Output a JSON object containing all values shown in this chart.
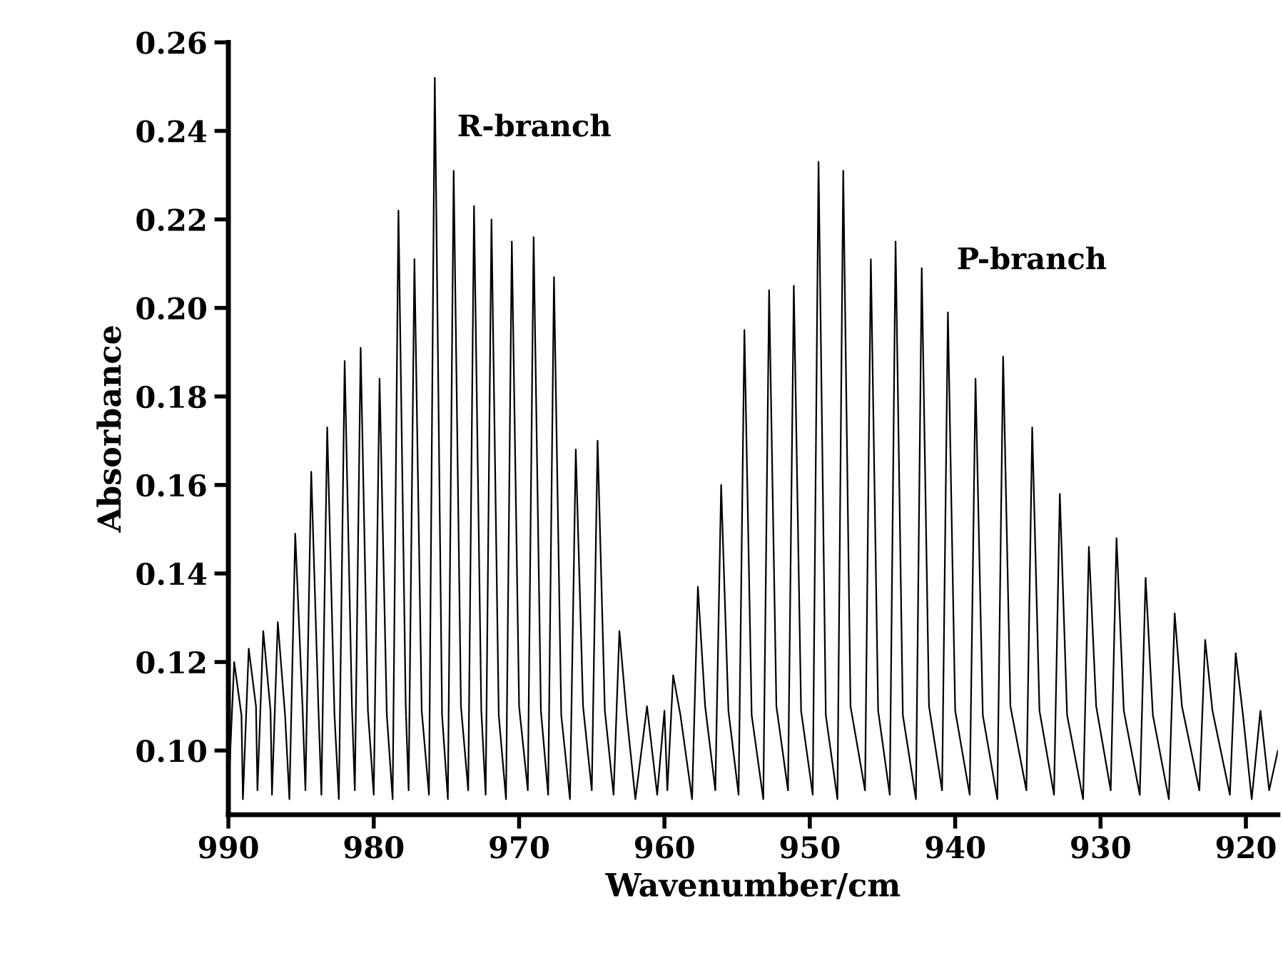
{
  "chart_data": {
    "type": "line",
    "xlabel": "Wavenumber/cm",
    "ylabel": "Absorbance",
    "xlim": [
      990,
      917.8
    ],
    "xticks": [
      990,
      980,
      970,
      960,
      950,
      940,
      930,
      920
    ],
    "ylim": [
      0.0855,
      0.26
    ],
    "yticks": [
      {
        "value": 0.1,
        "label": "0.10"
      },
      {
        "value": 0.12,
        "label": "0.12"
      },
      {
        "value": 0.14,
        "label": "0.14"
      },
      {
        "value": 0.16,
        "label": "0.16"
      },
      {
        "value": 0.18,
        "label": "0.18"
      },
      {
        "value": 0.2,
        "label": "0.20"
      },
      {
        "value": 0.22,
        "label": "0.22"
      },
      {
        "value": 0.24,
        "label": "0.24"
      },
      {
        "value": 0.26,
        "label": "0.26"
      }
    ],
    "grid": false,
    "legend": false,
    "annotations": [
      "R-branch",
      "P-branch"
    ],
    "series": [
      {
        "color": "#000000",
        "x": [
          990.0,
          989.6,
          989.1,
          989.0,
          988.6,
          988.1,
          988.0,
          987.6,
          987.1,
          987.0,
          986.6,
          986.1,
          985.8,
          985.4,
          984.9,
          984.7,
          984.3,
          983.8,
          983.6,
          983.2,
          982.7,
          982.4,
          982.0,
          981.5,
          981.3,
          980.9,
          980.4,
          980.0,
          979.6,
          979.1,
          978.7,
          978.3,
          977.8,
          977.6,
          977.2,
          976.7,
          976.2,
          975.8,
          975.3,
          974.9,
          974.5,
          974.0,
          973.5,
          973.1,
          972.6,
          972.3,
          971.9,
          971.4,
          970.9,
          970.5,
          970.0,
          969.4,
          969.0,
          968.5,
          968.0,
          967.6,
          967.1,
          966.5,
          966.1,
          965.6,
          965.0,
          964.6,
          964.1,
          963.5,
          963.1,
          962.6,
          962.0,
          961.2,
          960.5,
          960.0,
          959.8,
          959.4,
          958.9,
          958.1,
          957.7,
          957.2,
          956.5,
          956.1,
          955.6,
          954.9,
          954.5,
          954.0,
          953.2,
          952.8,
          952.3,
          951.5,
          951.1,
          950.6,
          949.8,
          949.4,
          948.9,
          948.1,
          947.7,
          947.2,
          946.2,
          945.8,
          945.3,
          944.5,
          944.1,
          943.6,
          942.7,
          942.3,
          941.8,
          940.9,
          940.5,
          940.0,
          939.0,
          938.6,
          938.1,
          937.1,
          936.7,
          936.2,
          935.1,
          934.7,
          934.2,
          933.2,
          932.8,
          932.3,
          931.2,
          930.8,
          930.3,
          929.3,
          928.9,
          928.4,
          927.3,
          926.9,
          926.4,
          925.3,
          924.9,
          924.4,
          923.2,
          922.8,
          922.3,
          921.1,
          920.7,
          920.2,
          919.6,
          919.0,
          918.4,
          917.8
        ],
        "values": [
          0.09,
          0.12,
          0.108,
          0.089,
          0.123,
          0.11,
          0.091,
          0.127,
          0.109,
          0.09,
          0.129,
          0.108,
          0.089,
          0.149,
          0.11,
          0.091,
          0.163,
          0.109,
          0.09,
          0.173,
          0.108,
          0.089,
          0.188,
          0.11,
          0.091,
          0.191,
          0.109,
          0.09,
          0.184,
          0.108,
          0.089,
          0.222,
          0.11,
          0.091,
          0.211,
          0.109,
          0.09,
          0.252,
          0.108,
          0.089,
          0.231,
          0.11,
          0.091,
          0.223,
          0.109,
          0.09,
          0.22,
          0.108,
          0.089,
          0.215,
          0.11,
          0.091,
          0.216,
          0.109,
          0.09,
          0.207,
          0.108,
          0.089,
          0.168,
          0.11,
          0.091,
          0.17,
          0.109,
          0.09,
          0.127,
          0.108,
          0.089,
          0.11,
          0.09,
          0.109,
          0.091,
          0.117,
          0.108,
          0.089,
          0.137,
          0.11,
          0.091,
          0.16,
          0.109,
          0.09,
          0.195,
          0.108,
          0.089,
          0.204,
          0.11,
          0.091,
          0.205,
          0.109,
          0.09,
          0.233,
          0.108,
          0.089,
          0.231,
          0.11,
          0.091,
          0.211,
          0.109,
          0.09,
          0.215,
          0.108,
          0.089,
          0.209,
          0.11,
          0.091,
          0.199,
          0.109,
          0.09,
          0.184,
          0.108,
          0.089,
          0.189,
          0.11,
          0.091,
          0.173,
          0.109,
          0.09,
          0.158,
          0.108,
          0.089,
          0.146,
          0.11,
          0.091,
          0.148,
          0.109,
          0.09,
          0.139,
          0.108,
          0.089,
          0.131,
          0.11,
          0.091,
          0.125,
          0.109,
          0.09,
          0.122,
          0.108,
          0.089,
          0.109,
          0.091,
          0.1
        ]
      }
    ]
  }
}
